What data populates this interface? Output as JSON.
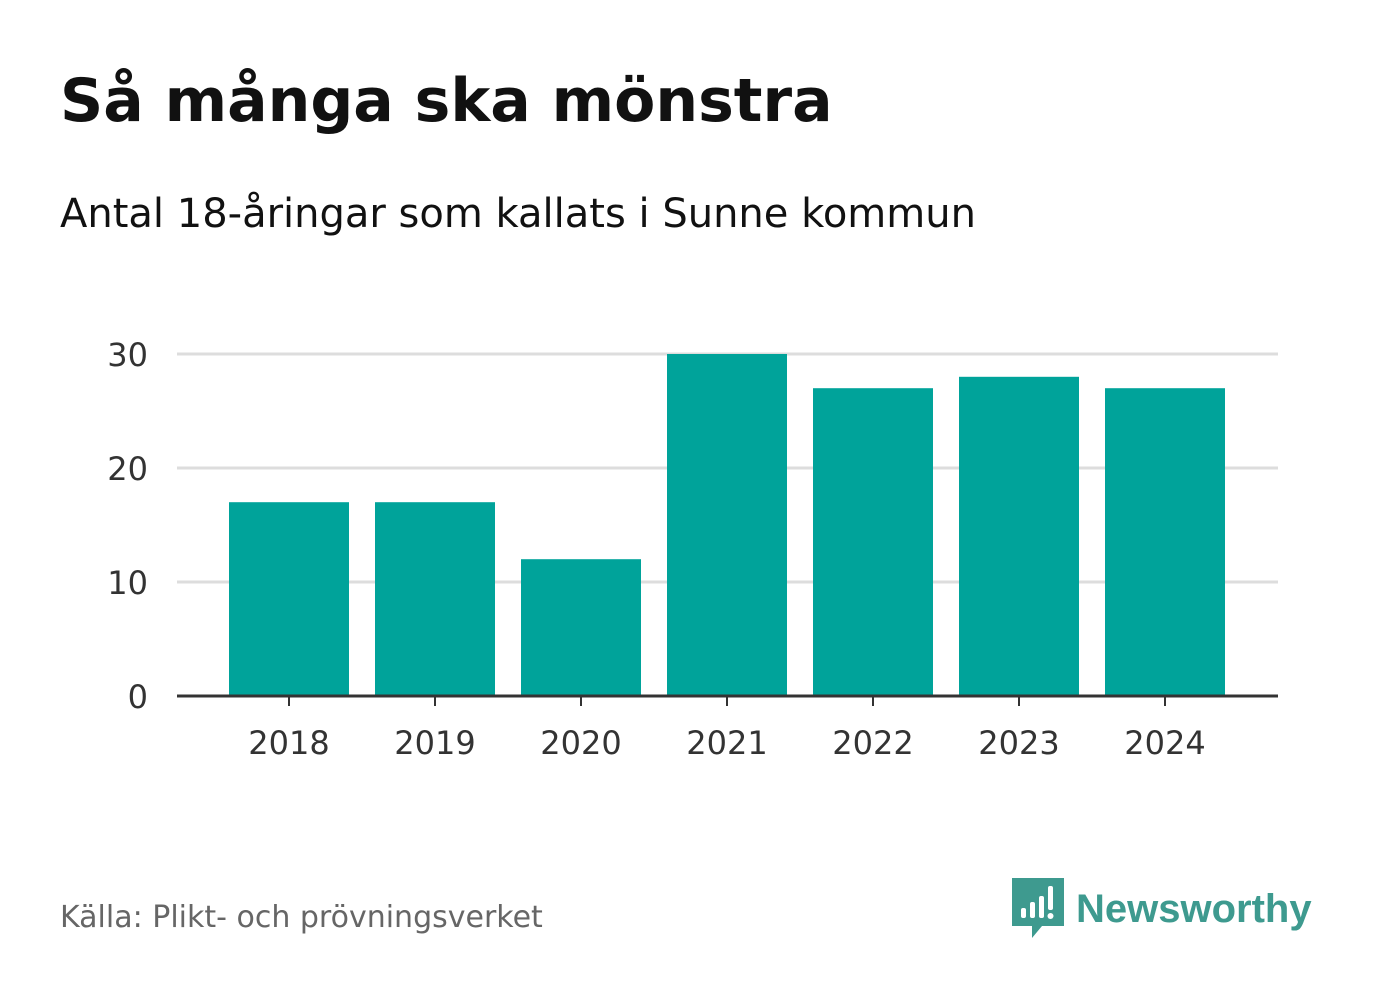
{
  "header": {
    "title": "Så många ska mönstra",
    "subtitle": "Antal 18-åringar som kallats i Sunne kommun"
  },
  "footer": {
    "source": "Källa: Plikt- och prövningsverket",
    "brand": "Newsworthy",
    "brand_icon": "newsworthy-logo-icon"
  },
  "colors": {
    "bar": "#00a39a",
    "grid": "#dddddd",
    "axis": "#333333",
    "tick_text": "#333333",
    "brand": "#3e9a8f"
  },
  "chart_data": {
    "type": "bar",
    "title": "Så många ska mönstra",
    "subtitle": "Antal 18-åringar som kallats i Sunne kommun",
    "categories": [
      "2018",
      "2019",
      "2020",
      "2021",
      "2022",
      "2023",
      "2024"
    ],
    "values": [
      17,
      17,
      12,
      30,
      27,
      28,
      27
    ],
    "xlabel": "",
    "ylabel": "",
    "ylim": [
      0,
      30
    ],
    "yticks": [
      "0",
      "10",
      "20",
      "30"
    ],
    "grid": true,
    "legend": "none"
  }
}
